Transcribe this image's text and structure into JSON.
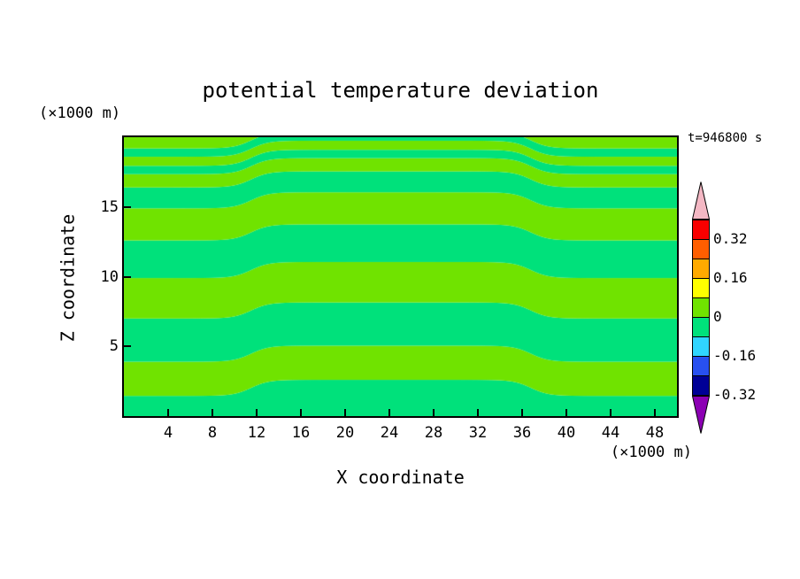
{
  "title": "potential temperature deviation",
  "time_label": "t=946800 s",
  "x_axis": {
    "label": "X coordinate",
    "unit_label": "(×1000 m)",
    "tick_labels": [
      "4",
      "8",
      "12",
      "16",
      "20",
      "24",
      "28",
      "32",
      "36",
      "40",
      "44",
      "48"
    ]
  },
  "y_axis": {
    "label": "Z coordinate",
    "unit_label": "(×1000 m)",
    "tick_labels": [
      "5",
      "10",
      "15"
    ]
  },
  "chart_data": {
    "type": "heatmap",
    "subtype": "filled-contour",
    "title": "potential temperature deviation",
    "time_annotation": "t=946800 s",
    "xlabel": "X coordinate",
    "ylabel": "Z coordinate",
    "x_unit": "×1000 m",
    "z_unit": "×1000 m",
    "xlim": [
      0,
      50
    ],
    "zlim": [
      0,
      20
    ],
    "x_ticks": [
      4,
      8,
      12,
      16,
      20,
      24,
      28,
      32,
      36,
      40,
      44,
      48
    ],
    "z_ticks": [
      5,
      10,
      15
    ],
    "contour_interval": 0.08,
    "value_range_visible": [
      -0.08,
      0.08
    ],
    "grid": false,
    "field_model": {
      "description": "Alternating-sign horizontal bands of potential temperature deviation (positive ~+0.04 shown yellow-green, negative ~-0.04 shown green). Band interfaces listed as heights z (×1000 m) on the left/right thirds; the middle section between the two step locations is displaced upward by step_amplitude_z with smooth sigmoidal steps.",
      "band_boundaries_z": [
        1.45,
        3.9,
        7.0,
        9.9,
        12.6,
        14.9,
        16.4,
        17.35,
        17.95,
        18.6,
        19.2
      ],
      "band_values": [
        -0.04,
        0.04,
        -0.04,
        0.04,
        -0.04,
        0.04,
        -0.04,
        0.04,
        -0.04,
        0.04,
        -0.04,
        0.04
      ],
      "band_colors": [
        "#00E17B",
        "#70E300",
        "#00E17B",
        "#70E300",
        "#00E17B",
        "#70E300",
        "#00E17B",
        "#70E300",
        "#00E17B",
        "#70E300",
        "#00E17B",
        "#70E300"
      ],
      "step_positions_x": [
        11.5,
        36.8
      ],
      "step_amplitude_z": 1.15,
      "step_width_x": 0.8
    },
    "colorbar": {
      "orientation": "vertical",
      "cell_bounds": [
        0.4,
        0.32,
        0.24,
        0.16,
        0.08,
        0,
        -0.08,
        -0.16,
        -0.24,
        -0.32
      ],
      "cell_colors": [
        "#F80000",
        "#FF5E00",
        "#FFAA00",
        "#FFFF00",
        "#70E300",
        "#00E17B",
        "#30D5FF",
        "#2850F0",
        "#000096"
      ],
      "over_color": "#F4B8C4",
      "under_color": "#8C00B4",
      "labels": [
        {
          "text": "0.32",
          "boundary_index": 1
        },
        {
          "text": "0.16",
          "boundary_index": 3
        },
        {
          "text": "0",
          "boundary_index": 5
        },
        {
          "text": "-0.16",
          "boundary_index": 7
        },
        {
          "text": "-0.32",
          "boundary_index": 9
        }
      ]
    }
  }
}
